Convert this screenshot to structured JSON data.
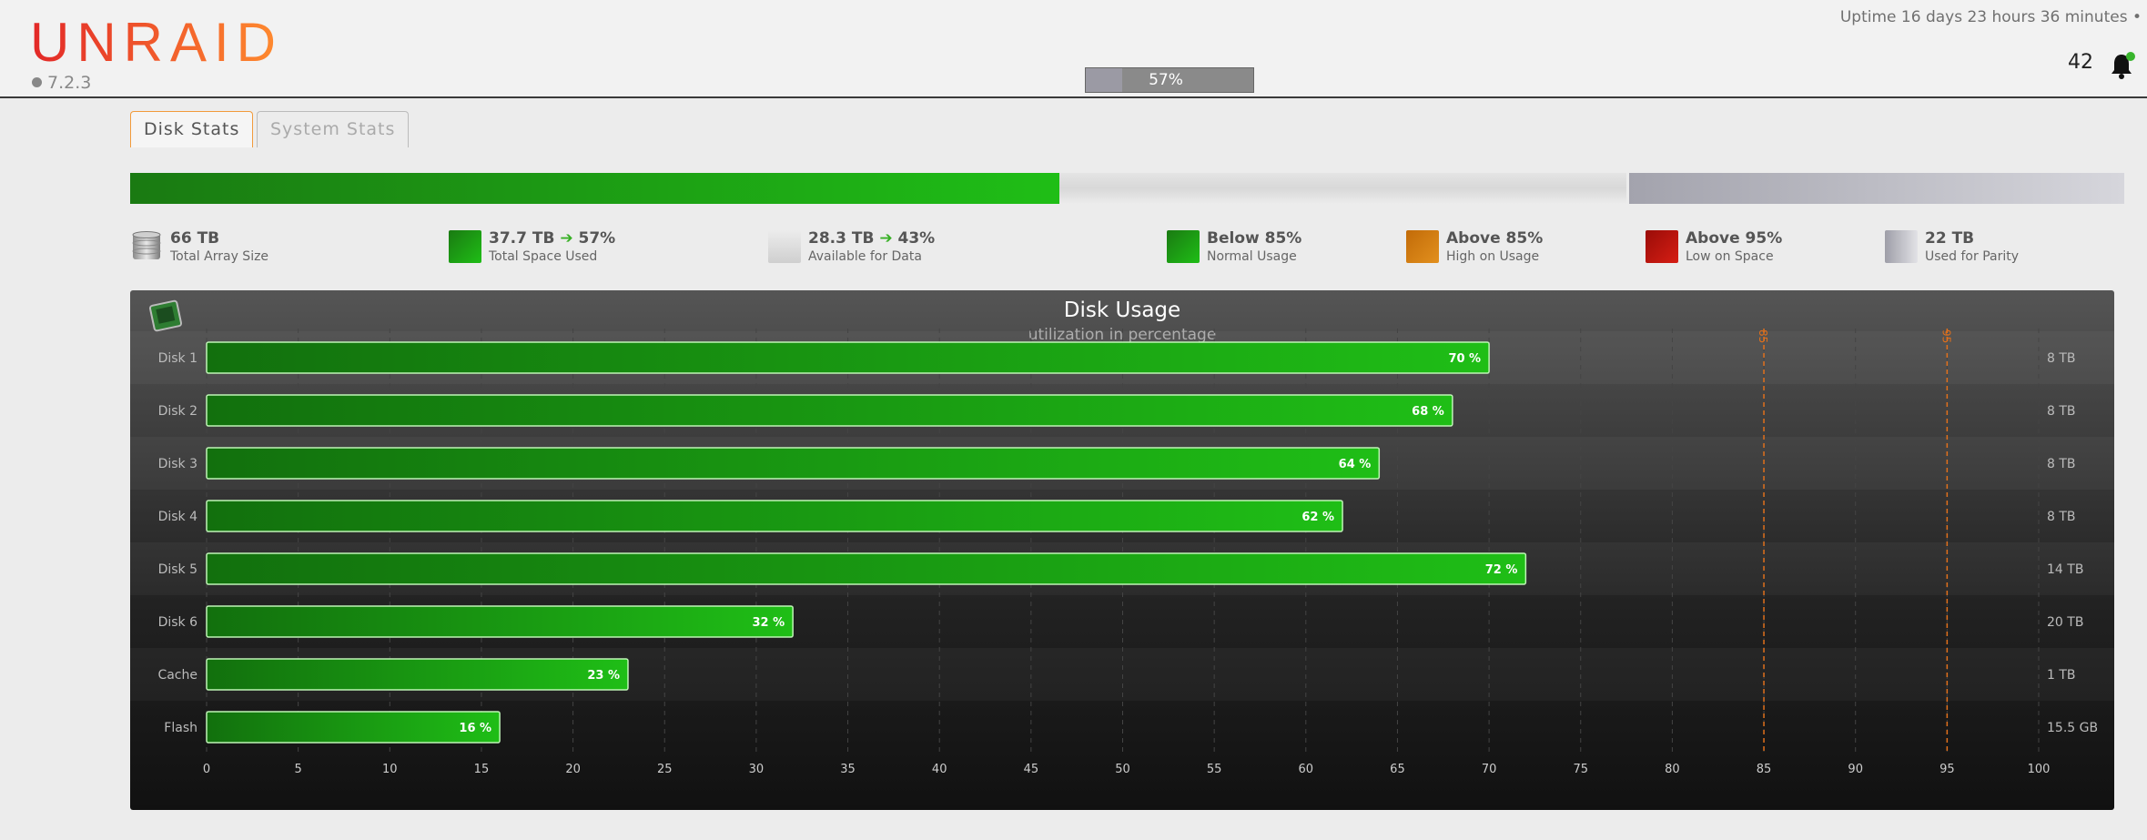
{
  "header": {
    "logo": "UNRAID",
    "version": "7.2.3",
    "uptime": "Uptime 16 days 23 hours 36 minutes  •  ",
    "cpu_percent": 57,
    "cpu_label": "57%",
    "notification_count": "42"
  },
  "tabs": [
    {
      "label": "Disk Stats",
      "active": true
    },
    {
      "label": "System Stats",
      "active": false
    }
  ],
  "usage_bar": {
    "used_percent": 57
  },
  "legend": [
    {
      "value": "66 TB",
      "desc": "Total Array Size",
      "icon": "database-icon"
    },
    {
      "value": "37.7 TB",
      "pct": "57%",
      "desc": "Total Space Used",
      "color": "#1a9e14"
    },
    {
      "value": "28.3 TB",
      "pct": "43%",
      "desc": "Available for Data",
      "color": "#dcdcdc"
    },
    {
      "value": "Below 85%",
      "desc": "Normal Usage",
      "color": "#1a9e14"
    },
    {
      "value": "Above 85%",
      "desc": "High on Usage",
      "color": "#d9851c"
    },
    {
      "value": "Above 95%",
      "desc": "Low on Space",
      "color": "#c2160f"
    },
    {
      "value": "22 TB",
      "desc": "Used for Parity",
      "color": "#b0b0b8"
    }
  ],
  "chart_data": {
    "type": "bar",
    "title": "Disk Usage",
    "subtitle": "utilization in percentage",
    "orientation": "horizontal",
    "categories": [
      "Disk 1",
      "Disk 2",
      "Disk 3",
      "Disk 4",
      "Disk 5",
      "Disk 6",
      "Cache",
      "Flash"
    ],
    "values": [
      70,
      68,
      64,
      62,
      72,
      32,
      23,
      16
    ],
    "value_labels": [
      "70 %",
      "68 %",
      "64 %",
      "62 %",
      "72 %",
      "32 %",
      "23 %",
      "16 %"
    ],
    "sizes": [
      "8 TB",
      "8 TB",
      "8 TB",
      "8 TB",
      "14 TB",
      "20 TB",
      "1 TB",
      "15.5 GB"
    ],
    "xlim": [
      0,
      100
    ],
    "xticks": [
      0,
      5,
      10,
      15,
      20,
      25,
      30,
      35,
      40,
      45,
      50,
      55,
      60,
      65,
      70,
      75,
      80,
      85,
      90,
      95,
      100
    ],
    "thresholds": [
      {
        "value": 85,
        "label": "85"
      },
      {
        "value": 95,
        "label": "95"
      }
    ],
    "grid": true,
    "colors": {
      "bar": "#1fbe16",
      "threshold": "#e0701c"
    }
  }
}
